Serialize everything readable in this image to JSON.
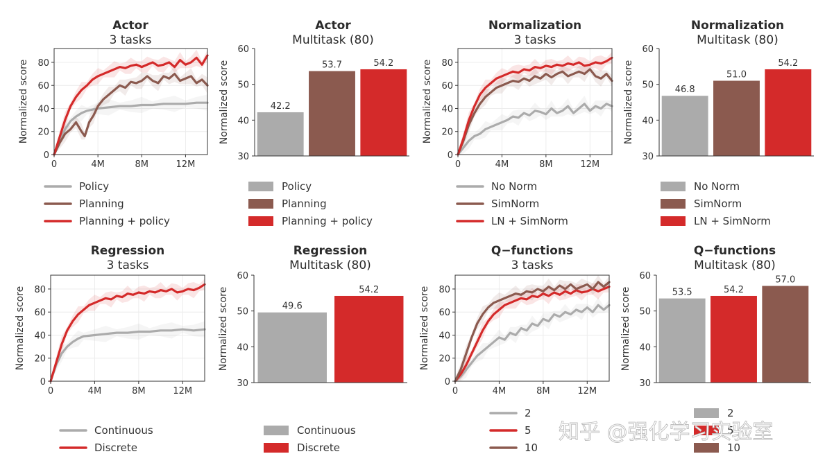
{
  "colors": {
    "gray": "#ababab",
    "brown": "#8b5a4f",
    "red": "#d42a2a",
    "axis": "#333333",
    "grid": "#ececec"
  },
  "watermark": "知乎 @强化学习实验室",
  "chart_data": [
    {
      "id": "actor-3tasks",
      "type": "line",
      "title": "Actor",
      "subtitle": "3 tasks",
      "ylabel": "Normalized score",
      "xlabel": "",
      "xlim": [
        0,
        14
      ],
      "ylim": [
        0,
        92
      ],
      "xticks": [
        0,
        4,
        8,
        12
      ],
      "xtick_labels": [
        "0",
        "4M",
        "8M",
        "12M"
      ],
      "yticks": [
        0,
        20,
        40,
        60,
        80
      ],
      "series": [
        {
          "name": "Policy",
          "color": "gray",
          "x": [
            0,
            0.5,
            1,
            1.5,
            2,
            2.5,
            3,
            4,
            5,
            6,
            7,
            8,
            9,
            10,
            11,
            12,
            13,
            14
          ],
          "y": [
            0,
            12,
            22,
            29,
            33,
            36,
            38,
            40,
            41,
            42,
            42,
            43,
            43,
            44,
            44,
            44,
            45,
            45
          ]
        },
        {
          "name": "Planning",
          "color": "brown",
          "x": [
            0,
            0.5,
            1,
            1.5,
            2,
            2.5,
            2.8,
            3.2,
            3.6,
            4,
            4.5,
            5,
            5.5,
            6,
            6.5,
            7,
            7.5,
            8,
            8.5,
            9,
            9.5,
            10,
            10.5,
            11,
            11.5,
            12,
            12.5,
            13,
            13.5,
            14
          ],
          "y": [
            0,
            10,
            18,
            22,
            28,
            20,
            16,
            28,
            34,
            42,
            48,
            52,
            56,
            60,
            58,
            63,
            62,
            64,
            68,
            64,
            62,
            68,
            66,
            70,
            64,
            66,
            68,
            62,
            65,
            60
          ]
        },
        {
          "name": "Planning + policy",
          "color": "red",
          "x": [
            0,
            0.5,
            1,
            1.5,
            2,
            2.5,
            3,
            3.5,
            4,
            4.5,
            5,
            5.5,
            6,
            6.5,
            7,
            7.5,
            8,
            8.5,
            9,
            9.5,
            10,
            10.5,
            11,
            11.5,
            12,
            12.5,
            13,
            13.5,
            14
          ],
          "y": [
            0,
            15,
            30,
            42,
            50,
            56,
            60,
            65,
            68,
            70,
            72,
            74,
            76,
            75,
            77,
            78,
            76,
            78,
            80,
            77,
            78,
            80,
            76,
            82,
            78,
            80,
            84,
            78,
            86
          ]
        }
      ]
    },
    {
      "id": "actor-multitask",
      "type": "bar",
      "title": "Actor",
      "subtitle": "Multitask (80)",
      "ylabel": "Normalized score",
      "ylim": [
        30,
        60
      ],
      "yticks": [
        30,
        40,
        50,
        60
      ],
      "categories": [
        "Policy",
        "Planning",
        "Planning + policy"
      ],
      "values": [
        42.2,
        53.7,
        54.2
      ],
      "value_labels": [
        "42.2",
        "53.7",
        "54.2"
      ],
      "colors": [
        "gray",
        "brown",
        "red"
      ]
    },
    {
      "id": "norm-3tasks",
      "type": "line",
      "title": "Normalization",
      "subtitle": "3 tasks",
      "ylabel": "Normalized score",
      "xlabel": "",
      "xlim": [
        0,
        14
      ],
      "ylim": [
        0,
        92
      ],
      "xticks": [
        0,
        4,
        8,
        12
      ],
      "xtick_labels": [
        "0",
        "4M",
        "8M",
        "12M"
      ],
      "yticks": [
        0,
        20,
        40,
        60,
        80
      ],
      "series": [
        {
          "name": "No Norm",
          "color": "gray",
          "x": [
            0,
            0.5,
            1,
            1.5,
            2,
            2.5,
            3,
            3.5,
            4,
            4.5,
            5,
            5.5,
            6,
            6.5,
            7,
            7.5,
            8,
            8.5,
            9,
            9.5,
            10,
            10.5,
            11,
            11.5,
            12,
            12.5,
            13,
            13.5,
            14
          ],
          "y": [
            0,
            6,
            12,
            16,
            18,
            22,
            24,
            26,
            28,
            30,
            33,
            32,
            36,
            34,
            38,
            37,
            35,
            40,
            36,
            38,
            42,
            36,
            40,
            44,
            38,
            42,
            40,
            44,
            42
          ]
        },
        {
          "name": "SimNorm",
          "color": "brown",
          "x": [
            0,
            0.5,
            1,
            1.5,
            2,
            2.5,
            3,
            3.5,
            4,
            4.5,
            5,
            5.5,
            6,
            6.5,
            7,
            7.5,
            8,
            8.5,
            9,
            9.5,
            10,
            10.5,
            11,
            11.5,
            12,
            12.5,
            13,
            13.5,
            14
          ],
          "y": [
            0,
            12,
            26,
            36,
            44,
            50,
            54,
            58,
            60,
            62,
            64,
            63,
            66,
            64,
            68,
            66,
            70,
            67,
            70,
            72,
            68,
            70,
            72,
            70,
            74,
            68,
            66,
            70,
            64
          ]
        },
        {
          "name": "LN + SimNorm",
          "color": "red",
          "x": [
            0,
            0.5,
            1,
            1.5,
            2,
            2.5,
            3,
            3.5,
            4,
            4.5,
            5,
            5.5,
            6,
            6.5,
            7,
            7.5,
            8,
            8.5,
            9,
            9.5,
            10,
            10.5,
            11,
            11.5,
            12,
            12.5,
            13,
            13.5,
            14
          ],
          "y": [
            0,
            14,
            30,
            42,
            52,
            58,
            62,
            66,
            68,
            70,
            72,
            71,
            74,
            73,
            76,
            75,
            77,
            76,
            78,
            77,
            79,
            78,
            80,
            77,
            78,
            80,
            79,
            81,
            84
          ]
        }
      ]
    },
    {
      "id": "norm-multitask",
      "type": "bar",
      "title": "Normalization",
      "subtitle": "Multitask (80)",
      "ylabel": "Normalized score",
      "ylim": [
        30,
        60
      ],
      "yticks": [
        30,
        40,
        50,
        60
      ],
      "categories": [
        "No Norm",
        "SimNorm",
        "LN + SimNorm"
      ],
      "values": [
        46.8,
        51.0,
        54.2
      ],
      "value_labels": [
        "46.8",
        "51.0",
        "54.2"
      ],
      "colors": [
        "gray",
        "brown",
        "red"
      ]
    },
    {
      "id": "regression-3tasks",
      "type": "line",
      "title": "Regression",
      "subtitle": "3 tasks",
      "ylabel": "Normalized score",
      "xlabel": "",
      "xlim": [
        0,
        14
      ],
      "ylim": [
        0,
        92
      ],
      "xticks": [
        0,
        4,
        8,
        12
      ],
      "xtick_labels": [
        "0",
        "4M",
        "8M",
        "12M"
      ],
      "yticks": [
        0,
        20,
        40,
        60,
        80
      ],
      "series": [
        {
          "name": "Continuous",
          "color": "gray",
          "x": [
            0,
            0.5,
            1,
            1.5,
            2,
            2.5,
            3,
            4,
            5,
            6,
            7,
            8,
            9,
            10,
            11,
            12,
            13,
            14
          ],
          "y": [
            0,
            14,
            24,
            30,
            34,
            37,
            39,
            40,
            41,
            42,
            42,
            43,
            43,
            44,
            44,
            45,
            44,
            45
          ]
        },
        {
          "name": "Discrete",
          "color": "red",
          "x": [
            0,
            0.5,
            1,
            1.5,
            2,
            2.5,
            3,
            3.5,
            4,
            4.5,
            5,
            5.5,
            6,
            6.5,
            7,
            7.5,
            8,
            8.5,
            9,
            9.5,
            10,
            10.5,
            11,
            11.5,
            12,
            12.5,
            13,
            13.5,
            14
          ],
          "y": [
            0,
            16,
            32,
            44,
            52,
            58,
            62,
            66,
            68,
            70,
            72,
            71,
            74,
            73,
            76,
            75,
            77,
            76,
            78,
            77,
            79,
            78,
            80,
            77,
            78,
            80,
            79,
            81,
            84
          ]
        }
      ]
    },
    {
      "id": "regression-multitask",
      "type": "bar",
      "title": "Regression",
      "subtitle": "Multitask (80)",
      "ylabel": "Normalized score",
      "ylim": [
        30,
        60
      ],
      "yticks": [
        30,
        40,
        50,
        60
      ],
      "categories": [
        "Continuous",
        "Discrete"
      ],
      "values": [
        49.6,
        54.2
      ],
      "value_labels": [
        "49.6",
        "54.2"
      ],
      "colors": [
        "gray",
        "red"
      ]
    },
    {
      "id": "qfunc-3tasks",
      "type": "line",
      "title": "Q−functions",
      "subtitle": "3 tasks",
      "ylabel": "Normalized score",
      "xlabel": "",
      "xlim": [
        0,
        14
      ],
      "ylim": [
        0,
        92
      ],
      "xticks": [
        0,
        4,
        8,
        12
      ],
      "xtick_labels": [
        "0",
        "4M",
        "8M",
        "12M"
      ],
      "yticks": [
        0,
        20,
        40,
        60,
        80
      ],
      "series": [
        {
          "name": "2",
          "color": "gray",
          "x": [
            0,
            0.5,
            1,
            1.5,
            2,
            2.5,
            3,
            3.5,
            4,
            4.5,
            5,
            5.5,
            6,
            6.5,
            7,
            7.5,
            8,
            8.5,
            9,
            9.5,
            10,
            10.5,
            11,
            11.5,
            12,
            12.5,
            13,
            13.5,
            14
          ],
          "y": [
            0,
            4,
            10,
            16,
            22,
            26,
            30,
            34,
            38,
            36,
            42,
            40,
            46,
            44,
            50,
            48,
            54,
            52,
            58,
            56,
            60,
            58,
            62,
            60,
            64,
            60,
            66,
            62,
            66
          ]
        },
        {
          "name": "5",
          "color": "red",
          "x": [
            0,
            0.5,
            1,
            1.5,
            2,
            2.5,
            3,
            3.5,
            4,
            4.5,
            5,
            5.5,
            6,
            6.5,
            7,
            7.5,
            8,
            8.5,
            9,
            9.5,
            10,
            10.5,
            11,
            11.5,
            12,
            12.5,
            13,
            13.5,
            14
          ],
          "y": [
            0,
            6,
            14,
            24,
            34,
            44,
            52,
            58,
            62,
            66,
            68,
            70,
            72,
            71,
            74,
            73,
            76,
            74,
            77,
            75,
            78,
            76,
            79,
            77,
            78,
            80,
            78,
            80,
            82
          ]
        },
        {
          "name": "10",
          "color": "brown",
          "x": [
            0,
            0.5,
            1,
            1.5,
            2,
            2.5,
            3,
            3.5,
            4,
            4.5,
            5,
            5.5,
            6,
            6.5,
            7,
            7.5,
            8,
            8.5,
            9,
            9.5,
            10,
            10.5,
            11,
            11.5,
            12,
            12.5,
            13,
            13.5,
            14
          ],
          "y": [
            0,
            10,
            24,
            38,
            50,
            58,
            64,
            68,
            70,
            72,
            74,
            76,
            75,
            78,
            77,
            80,
            78,
            82,
            79,
            83,
            80,
            84,
            80,
            82,
            84,
            80,
            86,
            82,
            86
          ]
        }
      ]
    },
    {
      "id": "qfunc-multitask",
      "type": "bar",
      "title": "Q−functions",
      "subtitle": "Multitask (80)",
      "ylabel": "Normalized score",
      "ylim": [
        30,
        60
      ],
      "yticks": [
        30,
        40,
        50,
        60
      ],
      "categories": [
        "2",
        "5",
        "10"
      ],
      "values": [
        53.5,
        54.2,
        57.0
      ],
      "value_labels": [
        "53.5",
        "54.2",
        "57.0"
      ],
      "colors": [
        "gray",
        "red",
        "brown"
      ]
    }
  ]
}
